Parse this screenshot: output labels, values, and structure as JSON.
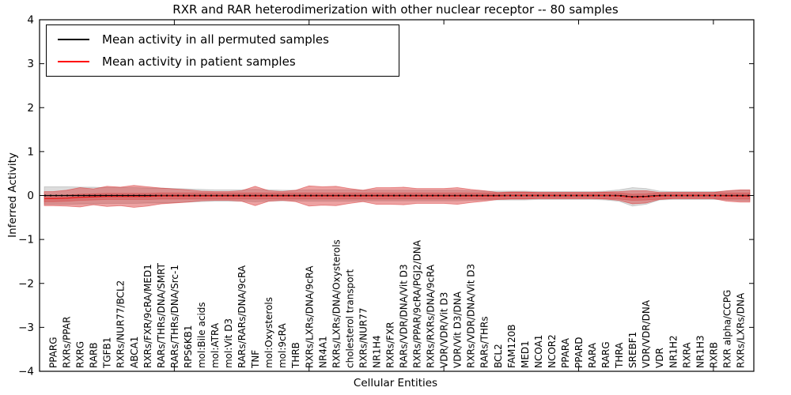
{
  "chart_data": {
    "type": "area",
    "title": "RXR and RAR heterodimerization with other nuclear receptor -- 80 samples",
    "xlabel": "Cellular Entities",
    "ylabel": "Inferred Activity",
    "ylim": [
      -4,
      4
    ],
    "yticks": [
      4,
      3,
      2,
      1,
      0,
      -1,
      -2,
      -3,
      -4
    ],
    "xlim": [
      0,
      53
    ],
    "xticks": [
      10,
      20,
      30,
      40,
      50
    ],
    "grid": false,
    "legend_location": "upper left",
    "tick_label_rotation_deg": 90,
    "categories": [
      "PPARG",
      "RXRs/PPAR",
      "RXRG",
      "RARB",
      "TGFB1",
      "RXRs/NUR77/BCL2",
      "ABCA1",
      "RXRs/FXR/9cRA/MED1",
      "RARs/THRs/DNA/SMRT",
      "RARs/THRs/DNA/Src-1",
      "RPS6KB1",
      "mol:Bile acids",
      "mol:ATRA",
      "mol:Vit D3",
      "RARs/RARs/DNA/9cRA",
      "TNF",
      "mol:Oxysterols",
      "mol:9cRA",
      "THRB",
      "RXRs/LXRs/DNA/9cRA",
      "NR4A1",
      "RXRs/LXRs/DNA/Oxysterols",
      "cholesterol transport",
      "RXRs/NUR77",
      "NR1H4",
      "RXRs/FXR",
      "RARs/VDR/DNA/Vit D3",
      "RXRs/PPAR/9cRA/PGJ2/DNA",
      "RXRs/RXRs/DNA/9cRA",
      "VDR/VDR/Vit D3",
      "VDR/Vit D3/DNA",
      "RXRs/VDR/DNA/Vit D3",
      "RARs/THRs",
      "BCL2",
      "FAM120B",
      "MED1",
      "NCOA1",
      "NCOR2",
      "PPARA",
      "PPARD",
      "RARA",
      "RARG",
      "THRA",
      "SREBF1",
      "VDR/VDR/DNA",
      "VDR",
      "NR1H2",
      "RXRA",
      "NR1H3",
      "RXRB",
      "RXR alpha/CCPG",
      "RXRs/LXRs/DNA"
    ],
    "series": [
      {
        "name": "Mean activity in all permuted samples",
        "color": "#000000",
        "style": "solid-with-dot-markers",
        "values": [
          0,
          0,
          0,
          0,
          0,
          0,
          0,
          0,
          0,
          0,
          0,
          0,
          0,
          0,
          0,
          0,
          0,
          0,
          0,
          0,
          0,
          0,
          0,
          0,
          0,
          0,
          0,
          0,
          0,
          0,
          0,
          0,
          0,
          0,
          0,
          0,
          0,
          0,
          0,
          0,
          0,
          0,
          0,
          -0.03,
          -0.02,
          0,
          0,
          0,
          0,
          0,
          0,
          0
        ]
      },
      {
        "name": "Mean activity in patient samples",
        "color": "#e81e1e",
        "style": "solid",
        "values": [
          -0.07,
          -0.06,
          -0.04,
          -0.03,
          -0.02,
          -0.02,
          -0.02,
          -0.02,
          -0.01,
          -0.01,
          -0.01,
          -0.01,
          -0.01,
          -0.01,
          -0.01,
          -0.01,
          -0.01,
          -0.01,
          -0.01,
          -0.01,
          -0.01,
          -0.01,
          -0.01,
          -0.01,
          -0.01,
          -0.01,
          -0.01,
          -0.01,
          -0.01,
          -0.01,
          -0.01,
          -0.01,
          -0.01,
          -0.01,
          0,
          0,
          0,
          0,
          0,
          0,
          0,
          0,
          -0.01,
          -0.04,
          -0.03,
          -0.01,
          0,
          0,
          0,
          0,
          -0.01,
          -0.01
        ]
      }
    ],
    "bands": [
      {
        "name": "permuted samples spread",
        "color": "#808080",
        "opacity": 0.28,
        "center_series": 0,
        "half_widths": [
          0.2,
          0.2,
          0.19,
          0.19,
          0.18,
          0.18,
          0.18,
          0.17,
          0.17,
          0.16,
          0.15,
          0.14,
          0.13,
          0.13,
          0.13,
          0.14,
          0.13,
          0.12,
          0.12,
          0.13,
          0.13,
          0.13,
          0.13,
          0.12,
          0.12,
          0.12,
          0.12,
          0.12,
          0.12,
          0.12,
          0.12,
          0.11,
          0.1,
          0.1,
          0.1,
          0.1,
          0.09,
          0.09,
          0.09,
          0.09,
          0.09,
          0.1,
          0.13,
          0.21,
          0.18,
          0.1,
          0.09,
          0.09,
          0.09,
          0.09,
          0.1,
          0.12
        ]
      },
      {
        "name": "patient samples spread",
        "color": "#d83030",
        "opacity": 0.45,
        "center_series": 1,
        "half_widths": [
          0.16,
          0.18,
          0.22,
          0.18,
          0.23,
          0.21,
          0.25,
          0.22,
          0.18,
          0.16,
          0.14,
          0.11,
          0.1,
          0.1,
          0.12,
          0.22,
          0.12,
          0.1,
          0.13,
          0.23,
          0.21,
          0.22,
          0.17,
          0.13,
          0.19,
          0.19,
          0.2,
          0.17,
          0.17,
          0.17,
          0.19,
          0.15,
          0.12,
          0.08,
          0.08,
          0.08,
          0.07,
          0.07,
          0.07,
          0.07,
          0.07,
          0.08,
          0.1,
          0.15,
          0.14,
          0.08,
          0.07,
          0.07,
          0.07,
          0.07,
          0.12,
          0.14
        ]
      },
      {
        "name": "patient samples inner spread",
        "color": "#d83030",
        "opacity": 0.3,
        "center_series": 1,
        "uniform_half_width": 0.07
      }
    ]
  }
}
